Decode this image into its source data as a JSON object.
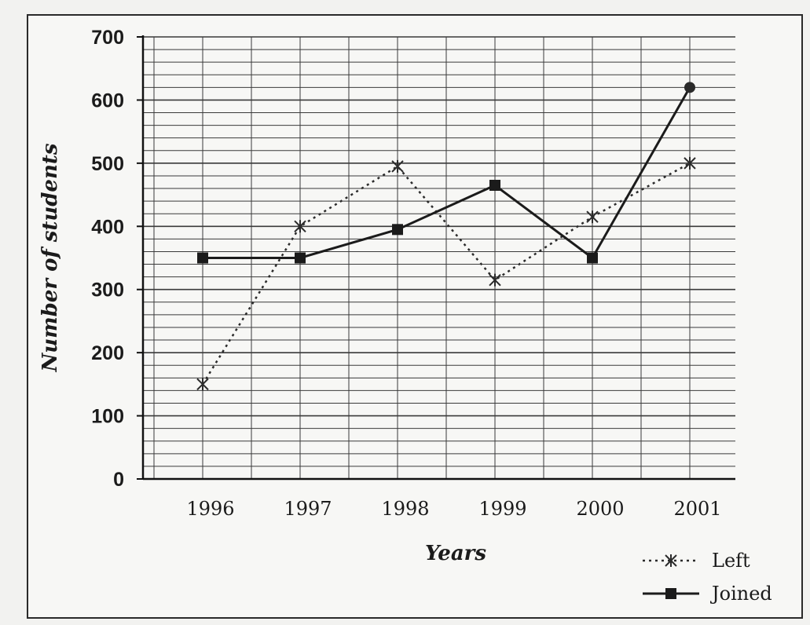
{
  "chart_data": {
    "type": "line",
    "title": "",
    "xlabel": "Years",
    "ylabel": "Number of students",
    "categories": [
      "1996",
      "1997",
      "1998",
      "1999",
      "2000",
      "2001"
    ],
    "ylim": [
      0,
      700
    ],
    "yticks": [
      0,
      100,
      200,
      300,
      400,
      500,
      600,
      700
    ],
    "grid": true,
    "legend_position": "bottom-right",
    "series": [
      {
        "name": "Left",
        "style": "dotted",
        "marker": "star",
        "color": "#2b2b2b",
        "values": [
          150,
          400,
          495,
          315,
          415,
          500
        ]
      },
      {
        "name": "Joined",
        "style": "solid",
        "marker": "square",
        "color": "#1b1b1b",
        "values": [
          350,
          350,
          395,
          465,
          350,
          620
        ]
      }
    ]
  }
}
